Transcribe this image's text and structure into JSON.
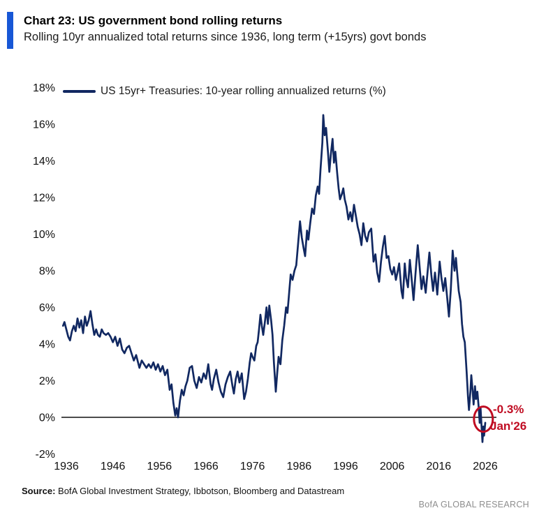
{
  "header": {
    "title": "Chart 23: US government bond rolling returns",
    "subtitle": "Rolling 10yr annualized total returns since 1936, long term (+15yrs) govt bonds",
    "accent_color": "#1757D6"
  },
  "footer": {
    "source_label": "Source:",
    "source_text": " BofA Global Investment Strategy, Ibbotson, Bloomberg and Datastream",
    "brand": "BofA GLOBAL RESEARCH"
  },
  "chart_data": {
    "type": "line",
    "title": "Chart 23: US government bond rolling returns",
    "subtitle": "Rolling 10yr annualized total returns since 1936, long term (+15yrs) govt bonds",
    "xlabel": "",
    "ylabel": "",
    "xlim": [
      1935,
      2027
    ],
    "ylim": [
      -2,
      18
    ],
    "grid": false,
    "legend_position": "top-left",
    "x_tick_values": [
      1936,
      1946,
      1956,
      1966,
      1976,
      1986,
      1996,
      2006,
      2016,
      2026
    ],
    "x_tick_labels": [
      "1936",
      "1946",
      "1956",
      "1966",
      "1976",
      "1986",
      "1996",
      "2006",
      "2016",
      "2026"
    ],
    "y_tick_values": [
      18,
      16,
      14,
      12,
      10,
      8,
      6,
      4,
      2,
      0,
      -2
    ],
    "y_tick_labels": [
      "18%",
      "16%",
      "14%",
      "12%",
      "10%",
      "8%",
      "6%",
      "4%",
      "2%",
      "0%",
      "-2%"
    ],
    "zero_line": true,
    "zero_line_color": "#4B4B4B",
    "annotation": {
      "label_value": "-0.3%",
      "label_date": "Jan'26",
      "x": 2025.6,
      "y": -0.1,
      "color": "#C00C22"
    },
    "series": [
      {
        "name": "US 15yr+ Treasuries: 10-year rolling annualized returns (%)",
        "color": "#112861",
        "points": [
          [
            1935.3,
            5.0
          ],
          [
            1935.6,
            5.2
          ],
          [
            1936.0,
            4.8
          ],
          [
            1936.4,
            4.4
          ],
          [
            1936.8,
            4.2
          ],
          [
            1937.2,
            4.7
          ],
          [
            1937.6,
            5.0
          ],
          [
            1938.0,
            4.7
          ],
          [
            1938.4,
            5.4
          ],
          [
            1938.8,
            4.9
          ],
          [
            1939.2,
            5.3
          ],
          [
            1939.6,
            4.6
          ],
          [
            1940.0,
            5.5
          ],
          [
            1940.4,
            5.0
          ],
          [
            1940.8,
            5.3
          ],
          [
            1941.2,
            5.8
          ],
          [
            1941.6,
            5.1
          ],
          [
            1942.0,
            4.5
          ],
          [
            1942.4,
            4.8
          ],
          [
            1942.8,
            4.5
          ],
          [
            1943.2,
            4.4
          ],
          [
            1943.6,
            4.8
          ],
          [
            1944.0,
            4.6
          ],
          [
            1944.5,
            4.5
          ],
          [
            1945.0,
            4.6
          ],
          [
            1945.5,
            4.4
          ],
          [
            1946.0,
            4.1
          ],
          [
            1946.5,
            4.4
          ],
          [
            1947.0,
            3.9
          ],
          [
            1947.5,
            4.3
          ],
          [
            1948.0,
            3.7
          ],
          [
            1948.5,
            3.5
          ],
          [
            1949.0,
            3.8
          ],
          [
            1949.5,
            3.9
          ],
          [
            1950.0,
            3.5
          ],
          [
            1950.5,
            3.1
          ],
          [
            1951.0,
            3.4
          ],
          [
            1951.7,
            2.7
          ],
          [
            1952.2,
            3.1
          ],
          [
            1952.7,
            2.9
          ],
          [
            1953.2,
            2.7
          ],
          [
            1953.7,
            2.9
          ],
          [
            1954.2,
            2.7
          ],
          [
            1954.7,
            3.0
          ],
          [
            1955.2,
            2.6
          ],
          [
            1955.7,
            2.9
          ],
          [
            1956.2,
            2.5
          ],
          [
            1956.7,
            2.8
          ],
          [
            1957.2,
            2.3
          ],
          [
            1957.7,
            2.6
          ],
          [
            1958.2,
            1.5
          ],
          [
            1958.6,
            1.8
          ],
          [
            1959.0,
            0.8
          ],
          [
            1959.4,
            0.1
          ],
          [
            1959.7,
            0.5
          ],
          [
            1960.0,
            0.0
          ],
          [
            1960.4,
            0.9
          ],
          [
            1960.8,
            1.5
          ],
          [
            1961.2,
            1.2
          ],
          [
            1961.6,
            1.7
          ],
          [
            1962.0,
            2.0
          ],
          [
            1962.5,
            2.7
          ],
          [
            1963.0,
            2.8
          ],
          [
            1963.5,
            2.0
          ],
          [
            1964.0,
            1.6
          ],
          [
            1964.5,
            2.2
          ],
          [
            1965.0,
            1.9
          ],
          [
            1965.5,
            2.4
          ],
          [
            1966.0,
            2.1
          ],
          [
            1966.5,
            2.9
          ],
          [
            1967.0,
            1.8
          ],
          [
            1967.3,
            1.5
          ],
          [
            1967.7,
            2.1
          ],
          [
            1968.2,
            2.6
          ],
          [
            1968.7,
            1.9
          ],
          [
            1969.2,
            1.4
          ],
          [
            1969.7,
            1.1
          ],
          [
            1970.2,
            1.8
          ],
          [
            1970.7,
            2.2
          ],
          [
            1971.2,
            2.5
          ],
          [
            1971.7,
            1.7
          ],
          [
            1972.0,
            1.3
          ],
          [
            1972.4,
            2.1
          ],
          [
            1972.8,
            2.5
          ],
          [
            1973.2,
            1.9
          ],
          [
            1973.7,
            2.4
          ],
          [
            1974.2,
            1.0
          ],
          [
            1974.6,
            1.4
          ],
          [
            1975.0,
            2.1
          ],
          [
            1975.4,
            3.0
          ],
          [
            1975.7,
            3.5
          ],
          [
            1976.0,
            3.3
          ],
          [
            1976.4,
            3.1
          ],
          [
            1976.8,
            3.9
          ],
          [
            1977.1,
            4.1
          ],
          [
            1977.4,
            4.8
          ],
          [
            1977.7,
            5.6
          ],
          [
            1978.0,
            5.0
          ],
          [
            1978.3,
            4.5
          ],
          [
            1978.7,
            5.3
          ],
          [
            1979.0,
            6.0
          ],
          [
            1979.3,
            5.1
          ],
          [
            1979.6,
            6.1
          ],
          [
            1980.0,
            5.3
          ],
          [
            1980.3,
            4.5
          ],
          [
            1980.6,
            3.0
          ],
          [
            1981.0,
            1.4
          ],
          [
            1981.3,
            2.4
          ],
          [
            1981.6,
            3.3
          ],
          [
            1982.0,
            2.9
          ],
          [
            1982.4,
            4.2
          ],
          [
            1982.8,
            5.0
          ],
          [
            1983.2,
            6.0
          ],
          [
            1983.5,
            5.7
          ],
          [
            1983.8,
            6.6
          ],
          [
            1984.2,
            7.8
          ],
          [
            1984.6,
            7.5
          ],
          [
            1985.0,
            8.0
          ],
          [
            1985.4,
            8.3
          ],
          [
            1985.8,
            9.5
          ],
          [
            1986.2,
            10.7
          ],
          [
            1986.6,
            9.8
          ],
          [
            1987.0,
            9.2
          ],
          [
            1987.3,
            8.8
          ],
          [
            1987.7,
            10.2
          ],
          [
            1988.0,
            9.7
          ],
          [
            1988.4,
            10.6
          ],
          [
            1988.8,
            11.4
          ],
          [
            1989.2,
            11.1
          ],
          [
            1989.6,
            12.1
          ],
          [
            1990.0,
            12.6
          ],
          [
            1990.3,
            12.2
          ],
          [
            1990.6,
            13.5
          ],
          [
            1991.0,
            15.0
          ],
          [
            1991.2,
            16.5
          ],
          [
            1991.5,
            15.4
          ],
          [
            1991.8,
            15.8
          ],
          [
            1992.2,
            14.5
          ],
          [
            1992.5,
            13.4
          ],
          [
            1992.8,
            14.3
          ],
          [
            1993.2,
            15.2
          ],
          [
            1993.5,
            13.9
          ],
          [
            1993.8,
            14.5
          ],
          [
            1994.2,
            13.3
          ],
          [
            1994.5,
            12.5
          ],
          [
            1994.8,
            11.9
          ],
          [
            1995.2,
            12.2
          ],
          [
            1995.5,
            12.5
          ],
          [
            1995.8,
            11.9
          ],
          [
            1996.2,
            11.5
          ],
          [
            1996.6,
            10.8
          ],
          [
            1997.0,
            11.2
          ],
          [
            1997.4,
            10.7
          ],
          [
            1997.8,
            11.6
          ],
          [
            1998.2,
            11.0
          ],
          [
            1998.6,
            10.4
          ],
          [
            1999.0,
            10.0
          ],
          [
            1999.4,
            9.4
          ],
          [
            1999.8,
            10.6
          ],
          [
            2000.2,
            9.9
          ],
          [
            2000.6,
            9.6
          ],
          [
            2001.0,
            10.1
          ],
          [
            2001.5,
            10.3
          ],
          [
            2002.0,
            8.5
          ],
          [
            2002.4,
            8.9
          ],
          [
            2002.8,
            7.9
          ],
          [
            2003.2,
            7.4
          ],
          [
            2003.6,
            8.5
          ],
          [
            2004.0,
            9.3
          ],
          [
            2004.4,
            9.9
          ],
          [
            2004.8,
            8.7
          ],
          [
            2005.2,
            8.8
          ],
          [
            2005.6,
            8.1
          ],
          [
            2006.0,
            7.8
          ],
          [
            2006.4,
            8.2
          ],
          [
            2006.8,
            7.5
          ],
          [
            2007.2,
            8.0
          ],
          [
            2007.5,
            8.4
          ],
          [
            2008.0,
            6.9
          ],
          [
            2008.3,
            6.5
          ],
          [
            2008.7,
            8.4
          ],
          [
            2009.0,
            7.6
          ],
          [
            2009.4,
            7.1
          ],
          [
            2009.8,
            8.6
          ],
          [
            2010.2,
            7.5
          ],
          [
            2010.6,
            6.4
          ],
          [
            2011.0,
            7.8
          ],
          [
            2011.5,
            9.4
          ],
          [
            2012.0,
            7.9
          ],
          [
            2012.3,
            7.0
          ],
          [
            2012.7,
            7.7
          ],
          [
            2013.2,
            6.8
          ],
          [
            2013.6,
            7.9
          ],
          [
            2014.0,
            9.0
          ],
          [
            2014.4,
            7.8
          ],
          [
            2014.8,
            6.9
          ],
          [
            2015.2,
            7.9
          ],
          [
            2015.7,
            6.7
          ],
          [
            2016.2,
            8.5
          ],
          [
            2016.6,
            7.6
          ],
          [
            2017.0,
            6.9
          ],
          [
            2017.4,
            7.6
          ],
          [
            2017.8,
            6.6
          ],
          [
            2018.2,
            5.5
          ],
          [
            2018.6,
            7.0
          ],
          [
            2019.0,
            9.1
          ],
          [
            2019.4,
            8.0
          ],
          [
            2019.7,
            8.7
          ],
          [
            2020.0,
            7.8
          ],
          [
            2020.3,
            6.9
          ],
          [
            2020.7,
            6.3
          ],
          [
            2021.0,
            5.1
          ],
          [
            2021.3,
            4.4
          ],
          [
            2021.6,
            4.1
          ],
          [
            2022.0,
            2.5
          ],
          [
            2022.3,
            1.1
          ],
          [
            2022.5,
            0.4
          ],
          [
            2022.8,
            1.4
          ],
          [
            2023.0,
            2.3
          ],
          [
            2023.3,
            1.4
          ],
          [
            2023.5,
            0.7
          ],
          [
            2023.8,
            1.7
          ],
          [
            2024.0,
            1.0
          ],
          [
            2024.3,
            1.4
          ],
          [
            2024.6,
            0.5
          ],
          [
            2024.8,
            -0.3
          ],
          [
            2025.0,
            0.5
          ],
          [
            2025.2,
            -0.5
          ],
          [
            2025.4,
            -1.35
          ],
          [
            2025.6,
            -0.5
          ],
          [
            2025.75,
            -1.0
          ],
          [
            2026.0,
            -0.3
          ]
        ]
      }
    ]
  }
}
